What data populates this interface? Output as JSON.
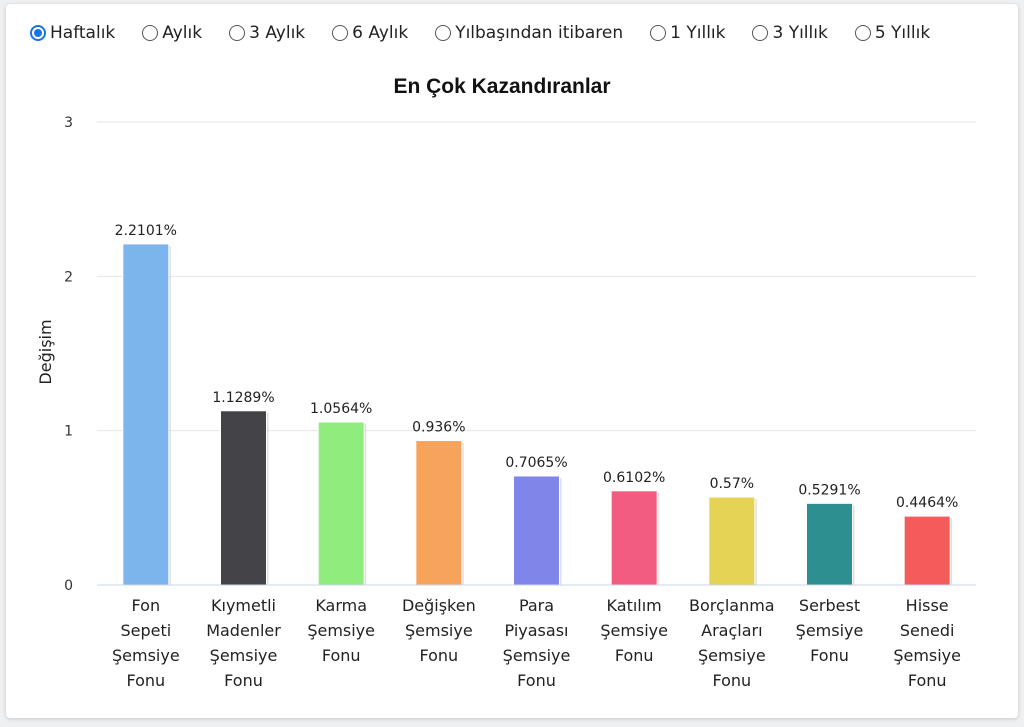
{
  "periods": {
    "selected": 0,
    "options": [
      "Haftalık",
      "Aylık",
      "3 Aylık",
      "6 Aylık",
      "Yılbaşından itibaren",
      "1 Yıllık",
      "3 Yıllık",
      "5 Yıllık"
    ]
  },
  "chart_data": {
    "type": "bar",
    "title": "En Çok Kazandıranlar",
    "xlabel": "",
    "ylabel": "Değişim",
    "ylim": [
      0,
      3
    ],
    "yticks": [
      "0",
      "1",
      "2",
      "3"
    ],
    "grid": true,
    "categories": [
      [
        "Fon",
        "Sepeti",
        "Şemsiye",
        "Fonu"
      ],
      [
        "Kıymetli",
        "Madenler",
        "Şemsiye",
        "Fonu"
      ],
      [
        "Karma",
        "Şemsiye",
        "Fonu"
      ],
      [
        "Değişken",
        "Şemsiye",
        "Fonu"
      ],
      [
        "Para",
        "Piyasası",
        "Şemsiye",
        "Fonu"
      ],
      [
        "Katılım",
        "Şemsiye",
        "Fonu"
      ],
      [
        "Borçlanma",
        "Araçları",
        "Şemsiye",
        "Fonu"
      ],
      [
        "Serbest",
        "Şemsiye",
        "Fonu"
      ],
      [
        "Hisse",
        "Senedi",
        "Şemsiye",
        "Fonu"
      ]
    ],
    "values": [
      2.2101,
      1.1289,
      1.0564,
      0.936,
      0.7065,
      0.6102,
      0.57,
      0.5291,
      0.4464
    ],
    "data_labels": [
      "2.2101%",
      "1.1289%",
      "1.0564%",
      "0.936%",
      "0.7065%",
      "0.6102%",
      "0.57%",
      "0.5291%",
      "0.4464%"
    ],
    "colors": [
      "#7cb5ec",
      "#434348",
      "#90ed7d",
      "#f7a35c",
      "#8085e9",
      "#f15c80",
      "#e4d354",
      "#2b908f",
      "#f45b5b"
    ]
  }
}
